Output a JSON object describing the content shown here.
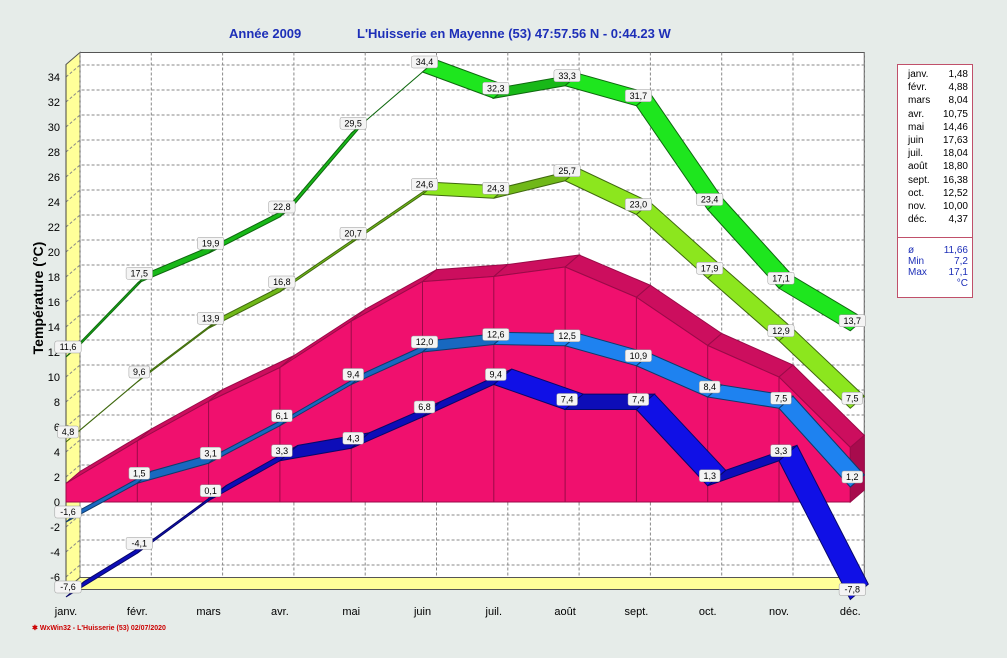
{
  "header": {
    "year_label": "Année  2009",
    "station_label": "L'Huisserie en Mayenne (53) 47:57.56 N - 0:44.23 W"
  },
  "footer": "WxWin32 - L'Huisserie (53)  02/07/2020",
  "legend": {
    "months": [
      {
        "m": "janv.",
        "v": "1,48"
      },
      {
        "m": "févr.",
        "v": "4,88"
      },
      {
        "m": "mars",
        "v": "8,04"
      },
      {
        "m": "avr.",
        "v": "10,75"
      },
      {
        "m": "mai",
        "v": "14,46"
      },
      {
        "m": "juin",
        "v": "17,63"
      },
      {
        "m": "juil.",
        "v": "18,04"
      },
      {
        "m": "août",
        "v": "18,80"
      },
      {
        "m": "sept.",
        "v": "16,38"
      },
      {
        "m": "oct.",
        "v": "12,52"
      },
      {
        "m": "nov.",
        "v": "10,00"
      },
      {
        "m": "déc.",
        "v": "4,37"
      }
    ],
    "stats": [
      {
        "m": "ø",
        "v": "11,66"
      },
      {
        "m": "Min",
        "v": "7,2"
      },
      {
        "m": "Max",
        "v": "17,1"
      },
      {
        "m": "",
        "v": "°C"
      }
    ]
  },
  "chart_data": {
    "type": "line",
    "categories": [
      "janv.",
      "févr.",
      "mars",
      "avr.",
      "mai",
      "juin",
      "juil.",
      "août",
      "sept.",
      "oct.",
      "nov.",
      "déc."
    ],
    "ylabel": "Température  (°C)",
    "xlabel": "",
    "ylim": [
      -7,
      35
    ],
    "yticks": [
      -6,
      -4,
      -2,
      0,
      2,
      4,
      6,
      8,
      10,
      12,
      14,
      16,
      18,
      20,
      22,
      24,
      26,
      28,
      30,
      32,
      34
    ],
    "grid": true,
    "colors": {
      "max_abs": "#1ee61e",
      "max_avg": "#8ce61e",
      "mean_area": "#f0106e",
      "min_avg": "#1e82f0",
      "min_abs": "#1010e6"
    },
    "series": [
      {
        "key": "max_abs",
        "values": [
          11.6,
          17.5,
          19.9,
          22.8,
          29.5,
          34.4,
          32.3,
          33.3,
          31.7,
          23.4,
          17.1,
          13.7
        ],
        "labels": [
          "11,6",
          "17,5",
          "19,9",
          "22,8",
          "29,5",
          "34,4",
          "32,3",
          "33,3",
          "31,7",
          "23,4",
          "17,1",
          "13,7"
        ]
      },
      {
        "key": "max_avg",
        "values": [
          4.8,
          9.6,
          13.9,
          16.8,
          20.7,
          24.6,
          24.3,
          25.7,
          23.0,
          17.9,
          12.9,
          7.5
        ],
        "labels": [
          "4,8",
          "9,6",
          "13,9",
          "16,8",
          "20,7",
          "24,6",
          "24,3",
          "25,7",
          "23,0",
          "17,9",
          "12,9",
          "7,5"
        ]
      },
      {
        "key": "mean_area",
        "values": [
          1.48,
          4.88,
          8.04,
          10.75,
          14.46,
          17.63,
          18.04,
          18.8,
          16.38,
          12.52,
          10.0,
          4.37
        ]
      },
      {
        "key": "min_avg",
        "values": [
          -1.6,
          1.5,
          3.1,
          6.1,
          9.4,
          12.0,
          12.6,
          12.5,
          10.9,
          8.4,
          7.5,
          1.2
        ],
        "labels": [
          "-1,6",
          "1,5",
          "3,1",
          "6,1",
          "9,4",
          "12,0",
          "12,6",
          "12,5",
          "10,9",
          "8,4",
          "7,5",
          "1,2"
        ]
      },
      {
        "key": "min_abs",
        "values": [
          -7.6,
          -4.1,
          0.1,
          3.3,
          4.3,
          6.8,
          9.4,
          7.4,
          7.4,
          1.3,
          3.3,
          -7.8
        ],
        "labels": [
          "-7,6",
          "-4,1",
          "0,1",
          "3,3",
          "4,3",
          "6,8",
          "9,4",
          "7,4",
          "7,4",
          "1,3",
          "3,3",
          "-7,8"
        ]
      }
    ]
  }
}
